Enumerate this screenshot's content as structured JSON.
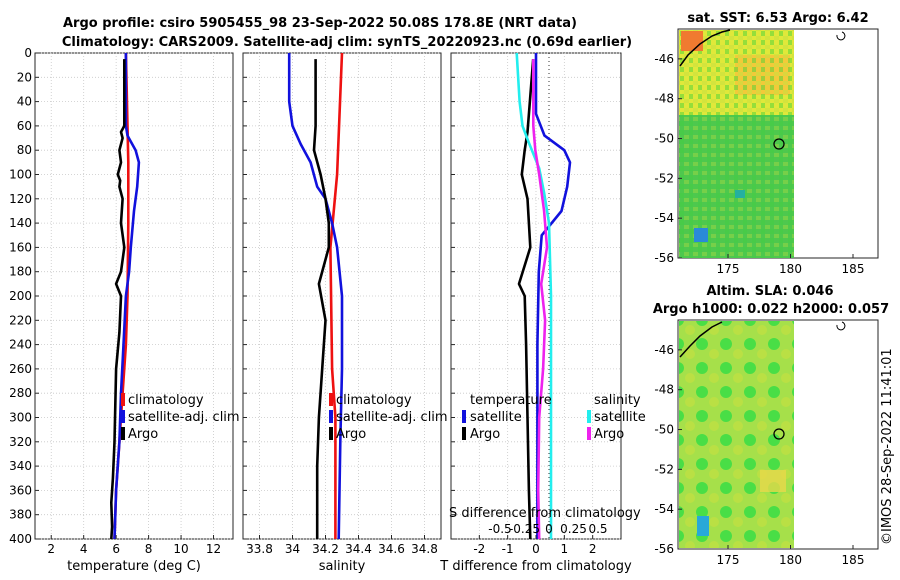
{
  "title": {
    "line1": "Argo profile: csiro 5905455_98 23-Sep-2022 50.08S 178.8E (NRT data)",
    "line2": "Climatology: CARS2009. Satellite-adj clim: synTS_20220923.nc (0.69d earlier)"
  },
  "colors": {
    "climatology": "#ee1111",
    "satellite": "#1111dd",
    "argo": "#000000",
    "sat_salinity": "#22eeee",
    "argo_salinity": "#ee22ee"
  },
  "chart_data": [
    {
      "id": "temperature",
      "type": "line",
      "xlabel": "temperature (deg C)",
      "xlim": [
        1,
        13.2
      ],
      "xticks": [
        2,
        4,
        6,
        8,
        10,
        12
      ],
      "ylim": [
        400,
        0
      ],
      "yticks": [
        0,
        20,
        40,
        60,
        80,
        100,
        120,
        140,
        160,
        180,
        200,
        220,
        240,
        260,
        280,
        300,
        320,
        340,
        360,
        380,
        400
      ],
      "legend": [
        "climatology",
        "satellite-adj. clim",
        "Argo"
      ],
      "series": [
        {
          "name": "climatology",
          "color": "#ee1111",
          "points": [
            [
              6.6,
              0
            ],
            [
              6.7,
              60
            ],
            [
              6.75,
              90
            ],
            [
              6.75,
              140
            ],
            [
              6.7,
              200
            ],
            [
              6.6,
              240
            ],
            [
              6.4,
              280
            ],
            [
              6.2,
              320
            ],
            [
              6.0,
              360
            ],
            [
              5.9,
              400
            ]
          ]
        },
        {
          "name": "satellite-adj. clim",
          "color": "#1111dd",
          "points": [
            [
              6.6,
              0
            ],
            [
              6.6,
              60
            ],
            [
              6.7,
              68
            ],
            [
              7.2,
              80
            ],
            [
              7.4,
              90
            ],
            [
              7.3,
              110
            ],
            [
              7.1,
              130
            ],
            [
              6.9,
              160
            ],
            [
              6.8,
              180
            ],
            [
              6.6,
              200
            ],
            [
              6.45,
              240
            ],
            [
              6.3,
              280
            ],
            [
              6.2,
              320
            ],
            [
              6.0,
              360
            ],
            [
              5.9,
              400
            ]
          ]
        },
        {
          "name": "Argo",
          "color": "#000000",
          "points": [
            [
              6.5,
              5
            ],
            [
              6.5,
              60
            ],
            [
              6.3,
              65
            ],
            [
              6.4,
              70
            ],
            [
              6.2,
              80
            ],
            [
              6.3,
              90
            ],
            [
              6.1,
              100
            ],
            [
              6.25,
              105
            ],
            [
              6.2,
              110
            ],
            [
              6.4,
              120
            ],
            [
              6.3,
              140
            ],
            [
              6.5,
              160
            ],
            [
              6.3,
              180
            ],
            [
              6.0,
              190
            ],
            [
              6.3,
              200
            ],
            [
              6.2,
              230
            ],
            [
              6.0,
              260
            ],
            [
              5.95,
              290
            ],
            [
              5.9,
              320
            ],
            [
              5.8,
              350
            ],
            [
              5.7,
              370
            ],
            [
              5.75,
              390
            ],
            [
              5.7,
              400
            ]
          ]
        }
      ]
    },
    {
      "id": "salinity",
      "type": "line",
      "xlabel": "salinity",
      "xlim": [
        33.7,
        34.9
      ],
      "xticks": [
        33.8,
        34,
        34.2,
        34.4,
        34.6,
        34.8
      ],
      "xticklabels": [
        "33.8",
        "34",
        "34.2",
        "34.4",
        "34.6",
        "34.8"
      ],
      "ylim": [
        400,
        0
      ],
      "legend": [
        "climatology",
        "satellite-adj. clim",
        "Argo"
      ],
      "series": [
        {
          "name": "climatology",
          "color": "#ee1111",
          "points": [
            [
              34.3,
              0
            ],
            [
              34.27,
              100
            ],
            [
              34.23,
              160
            ],
            [
              34.24,
              260
            ],
            [
              34.26,
              300
            ],
            [
              34.26,
              400
            ]
          ]
        },
        {
          "name": "satellite-adj. clim",
          "color": "#1111dd",
          "points": [
            [
              33.98,
              0
            ],
            [
              33.98,
              40
            ],
            [
              34.0,
              60
            ],
            [
              34.05,
              75
            ],
            [
              34.11,
              90
            ],
            [
              34.15,
              110
            ],
            [
              34.2,
              120
            ],
            [
              34.24,
              140
            ],
            [
              34.27,
              160
            ],
            [
              34.3,
              200
            ],
            [
              34.3,
              260
            ],
            [
              34.29,
              320
            ],
            [
              34.28,
              400
            ]
          ]
        },
        {
          "name": "Argo",
          "color": "#000000",
          "points": [
            [
              34.14,
              5
            ],
            [
              34.14,
              60
            ],
            [
              34.13,
              80
            ],
            [
              34.17,
              100
            ],
            [
              34.2,
              120
            ],
            [
              34.22,
              140
            ],
            [
              34.22,
              160
            ],
            [
              34.16,
              190
            ],
            [
              34.2,
              220
            ],
            [
              34.18,
              260
            ],
            [
              34.16,
              300
            ],
            [
              34.15,
              340
            ],
            [
              34.15,
              400
            ]
          ]
        }
      ]
    },
    {
      "id": "difference",
      "type": "line",
      "xlabel": "T difference from climatology",
      "xlim": [
        -3,
        3
      ],
      "xticks": [
        -2,
        -1,
        0,
        1,
        2
      ],
      "ylim": [
        400,
        0
      ],
      "secondary_xlabel": "S difference from climatology",
      "secondary_xticks": [
        -0.5,
        -0.25,
        0,
        0.25,
        0.5
      ],
      "secondary_xticklabels": [
        "-0.5",
        "-0.25",
        "0",
        "0.25",
        "0.5"
      ],
      "legend_temperature": {
        "title": "temperature",
        "items": [
          "satellite",
          "Argo"
        ]
      },
      "legend_salinity": {
        "title": "salinity",
        "items": [
          "satellite",
          "Argo"
        ]
      },
      "series": [
        {
          "name": "temperature satellite",
          "color": "#1111dd",
          "points": [
            [
              0,
              0
            ],
            [
              0,
              50
            ],
            [
              0.3,
              68
            ],
            [
              1.0,
              80
            ],
            [
              1.2,
              90
            ],
            [
              1.1,
              110
            ],
            [
              0.9,
              130
            ],
            [
              0.2,
              150
            ],
            [
              0.1,
              180
            ],
            [
              0.05,
              240
            ],
            [
              0.05,
              300
            ],
            [
              0.05,
              400
            ]
          ]
        },
        {
          "name": "temperature Argo",
          "color": "#000000",
          "points": [
            [
              -0.1,
              5
            ],
            [
              -0.3,
              65
            ],
            [
              -0.4,
              80
            ],
            [
              -0.5,
              100
            ],
            [
              -0.3,
              120
            ],
            [
              -0.2,
              160
            ],
            [
              -0.6,
              190
            ],
            [
              -0.4,
              200
            ],
            [
              -0.35,
              240
            ],
            [
              -0.3,
              300
            ],
            [
              -0.25,
              360
            ],
            [
              -0.2,
              400
            ]
          ]
        },
        {
          "name": "salinity satellite",
          "color": "#22eeee",
          "points": [
            [
              -0.33,
              0
            ],
            [
              -0.3,
              40
            ],
            [
              -0.27,
              60
            ],
            [
              -0.2,
              75
            ],
            [
              -0.1,
              95
            ],
            [
              -0.05,
              115
            ],
            [
              0.0,
              140
            ],
            [
              0.02,
              200
            ],
            [
              0.02,
              300
            ],
            [
              0.02,
              400
            ]
          ]
        },
        {
          "name": "salinity Argo",
          "color": "#ee22ee",
          "points": [
            [
              -0.16,
              5
            ],
            [
              -0.16,
              60
            ],
            [
              -0.14,
              80
            ],
            [
              -0.1,
              100
            ],
            [
              -0.05,
              130
            ],
            [
              -0.02,
              160
            ],
            [
              -0.08,
              190
            ],
            [
              -0.04,
              220
            ],
            [
              -0.06,
              260
            ],
            [
              -0.1,
              300
            ],
            [
              -0.11,
              360
            ],
            [
              -0.1,
              400
            ]
          ]
        }
      ]
    },
    {
      "id": "sst_map",
      "type": "heatmap",
      "title": "sat. SST: 6.53 Argo: 6.42",
      "xlim": [
        171,
        187
      ],
      "xticks": [
        175,
        180,
        185
      ],
      "ylim": [
        -56,
        -44.5
      ],
      "yticks": [
        -46,
        -48,
        -50,
        -52,
        -54,
        -56
      ],
      "float_position": [
        178.8,
        -50.08
      ]
    },
    {
      "id": "sla_map",
      "type": "heatmap",
      "title": "Altim. SLA: 0.046",
      "subtitle": "Argo h1000: 0.022 h2000: 0.057",
      "xlim": [
        171,
        187
      ],
      "xticks": [
        175,
        180,
        185
      ],
      "ylim": [
        -56,
        -44.5
      ],
      "yticks": [
        -46,
        -48,
        -50,
        -52,
        -54,
        -56
      ],
      "float_position": [
        178.8,
        -50.08
      ]
    }
  ],
  "footer": {
    "credit": "©IMOS 28-Sep-2022 11:41:01"
  }
}
